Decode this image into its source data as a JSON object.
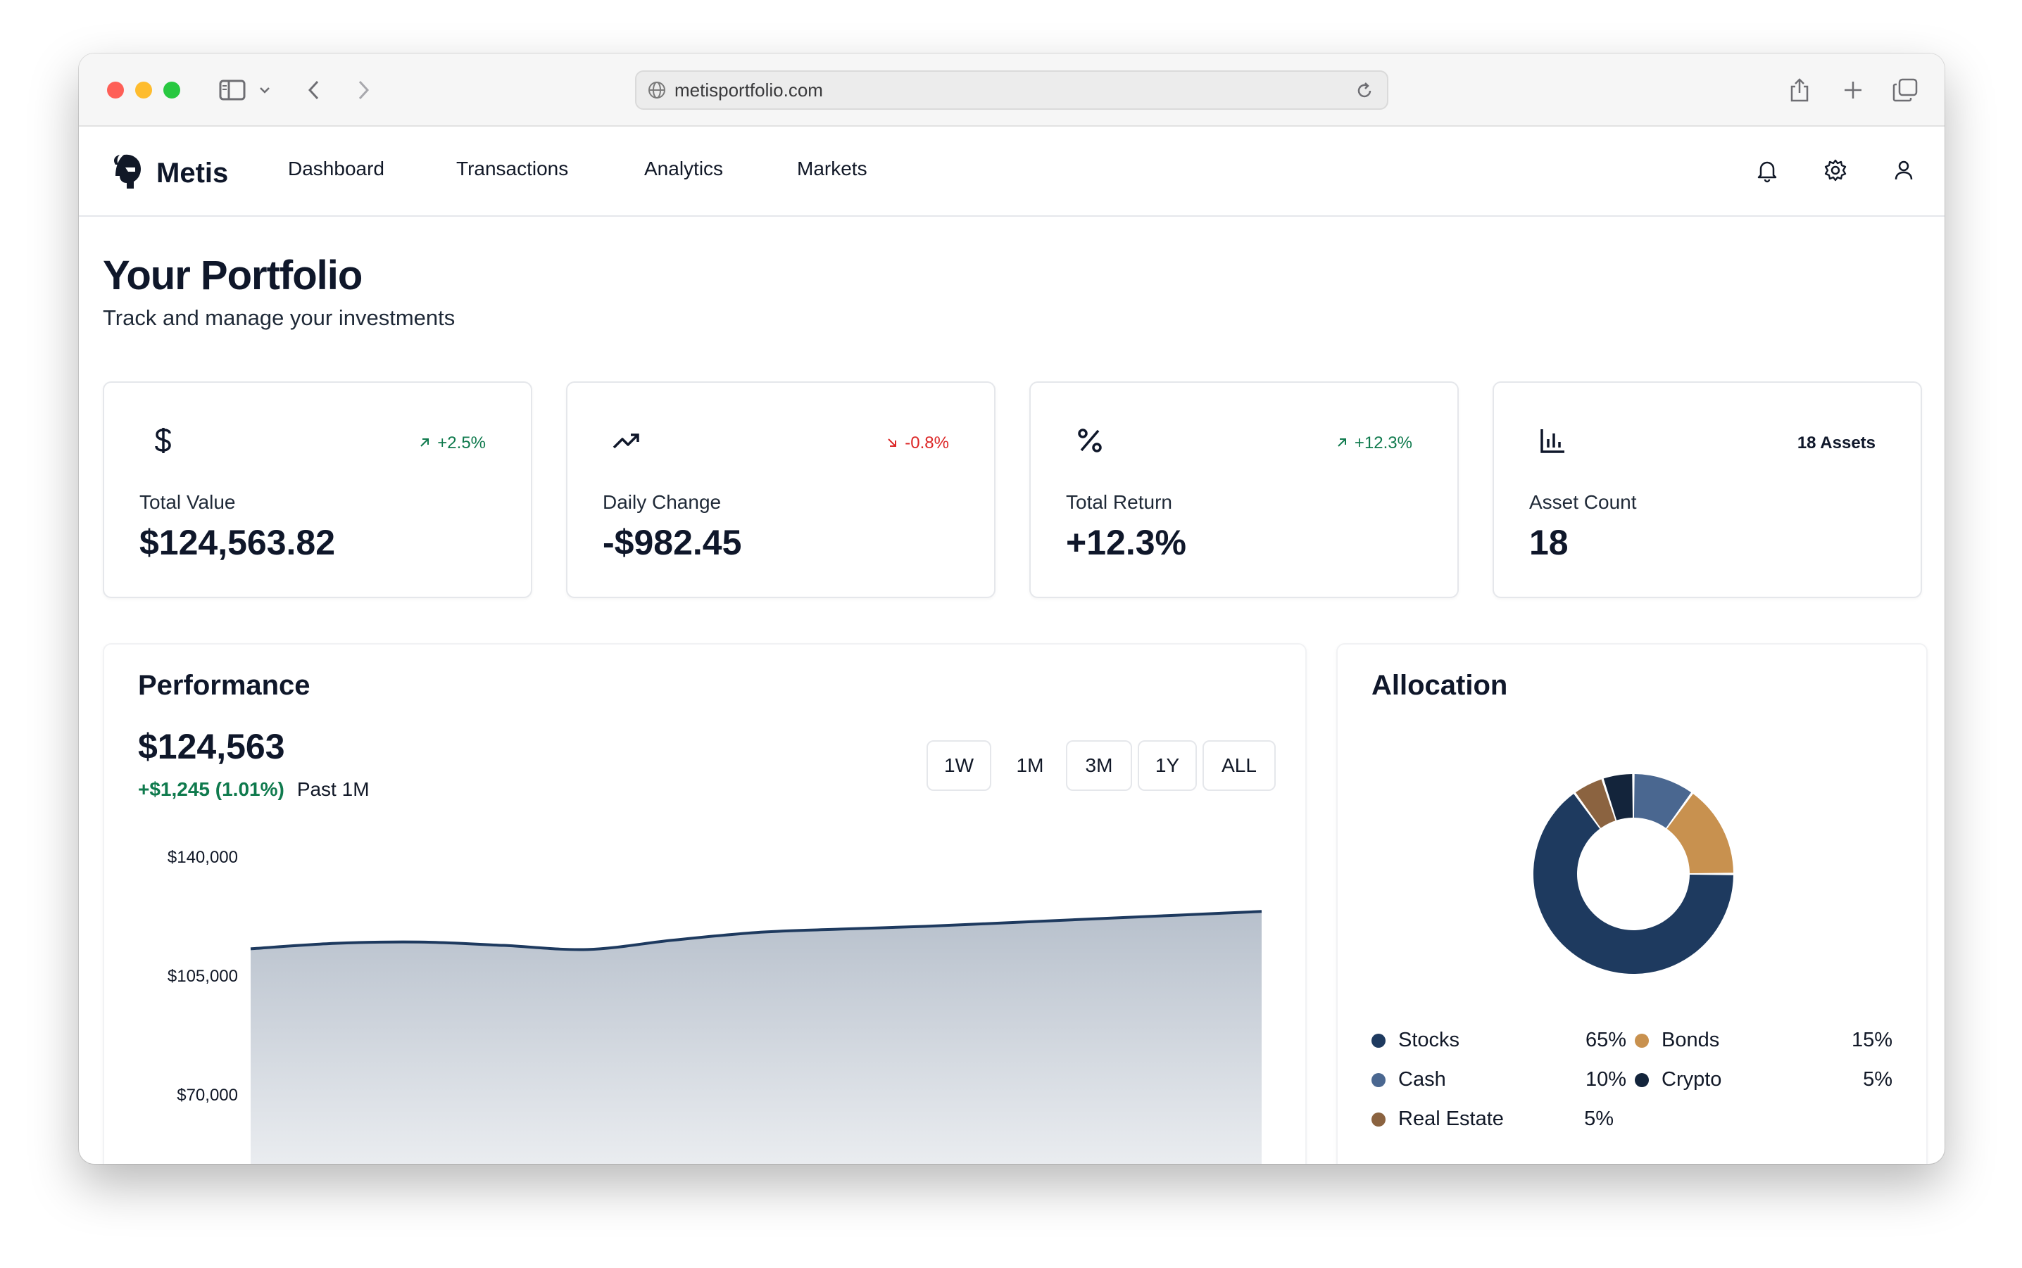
{
  "browser": {
    "url": "metisportfolio.com"
  },
  "app": {
    "name": "Metis",
    "nav": [
      "Dashboard",
      "Transactions",
      "Analytics",
      "Markets"
    ]
  },
  "page": {
    "title": "Your Portfolio",
    "subtitle": "Track and manage your investments"
  },
  "cards": [
    {
      "icon": "dollar-icon",
      "badge": "+2.5%",
      "badge_type": "pos",
      "label": "Total Value",
      "value": "$124,563.82"
    },
    {
      "icon": "trending-up-icon",
      "badge": "-0.8%",
      "badge_type": "neg",
      "label": "Daily Change",
      "value": "-$982.45"
    },
    {
      "icon": "percent-icon",
      "badge": "+12.3%",
      "badge_type": "pos",
      "label": "Total Return",
      "value": "+12.3%"
    },
    {
      "icon": "bar-chart-icon",
      "badge": "18 Assets",
      "badge_type": "neutral",
      "label": "Asset Count",
      "value": "18"
    }
  ],
  "performance": {
    "title": "Performance",
    "value": "$124,563",
    "delta": "+$1,245 (1.01%)",
    "period": "Past 1M",
    "ranges": [
      "1W",
      "1M",
      "3M",
      "1Y",
      "ALL"
    ],
    "selected_range": "1M"
  },
  "allocation": {
    "title": "Allocation",
    "items": [
      {
        "name": "Stocks",
        "pct": "65%",
        "value": 65,
        "color": "#1e3a5f"
      },
      {
        "name": "Bonds",
        "pct": "15%",
        "value": 15,
        "color": "#c8914f"
      },
      {
        "name": "Cash",
        "pct": "10%",
        "value": 10,
        "color": "#4a6790"
      },
      {
        "name": "Crypto",
        "pct": "5%",
        "value": 5,
        "color": "#13243b"
      },
      {
        "name": "Real Estate",
        "pct": "5%",
        "value": 5,
        "color": "#8b6340"
      }
    ]
  },
  "colors": {
    "accent_green": "#0f7a4d",
    "accent_red": "#dc2626",
    "navy": "#1e3a5f"
  },
  "chart_data": [
    {
      "type": "area",
      "title": "",
      "ylabel": "",
      "xlabel": "",
      "ylim": [
        0,
        140000
      ],
      "yticks": [
        "$140,000",
        "$105,000",
        "$70,000"
      ],
      "ytick_values": [
        140000,
        105000,
        70000
      ],
      "x": [
        0,
        1,
        2,
        3,
        4,
        5,
        6,
        7,
        8,
        9,
        10,
        11,
        12
      ],
      "series": [
        {
          "values": [
            113000,
            114600,
            115000,
            114000,
            112800,
            115500,
            117800,
            118800,
            119600,
            120700,
            121800,
            122900,
            124000
          ]
        }
      ]
    },
    {
      "type": "pie",
      "labels": [
        "Stocks",
        "Real Estate",
        "Crypto",
        "Cash",
        "Bonds"
      ],
      "values": [
        65,
        5,
        5,
        10,
        15
      ]
    }
  ]
}
